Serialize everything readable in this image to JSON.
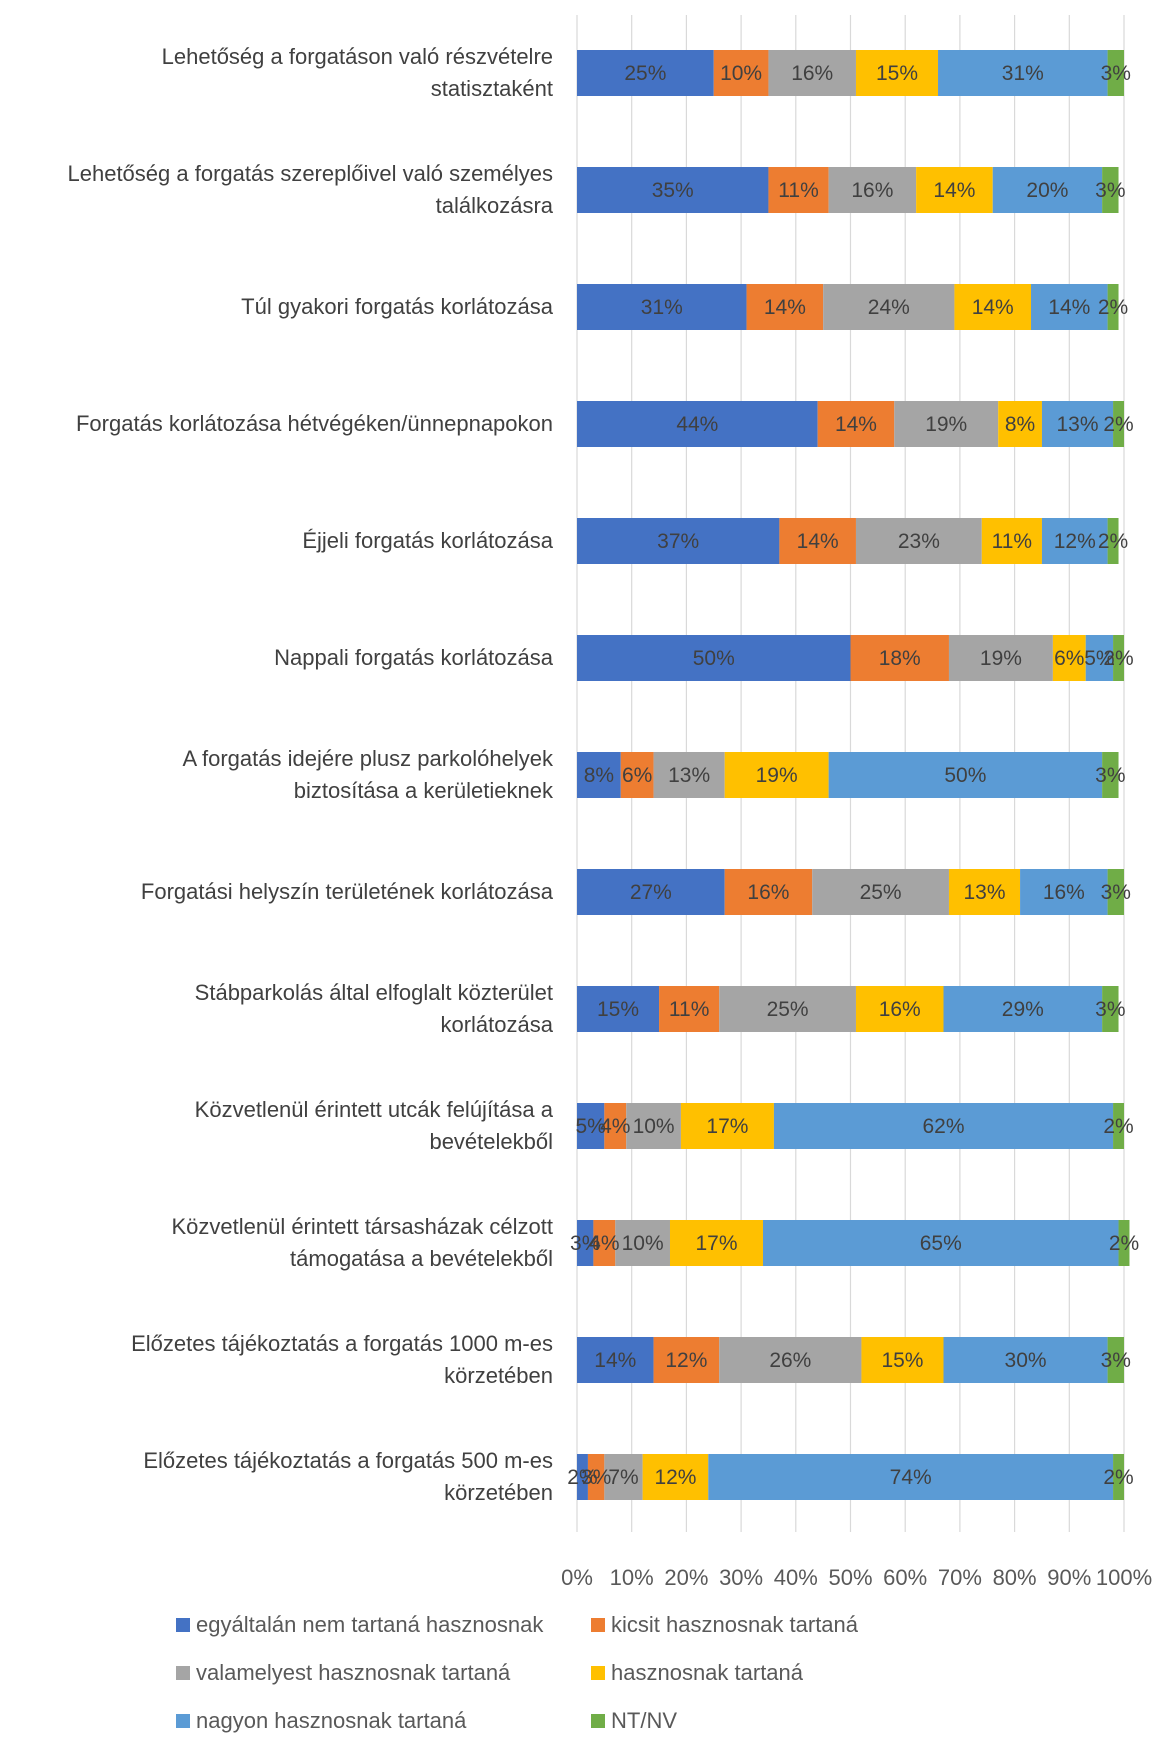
{
  "chart_data": {
    "type": "bar",
    "orientation": "horizontal",
    "stacked": "percent",
    "grid": true,
    "legend_position": "bottom",
    "xlim": [
      0,
      100
    ],
    "x_ticks": [
      "0%",
      "10%",
      "20%",
      "30%",
      "40%",
      "50%",
      "60%",
      "70%",
      "80%",
      "90%",
      "100%"
    ],
    "categories": [
      [
        "Lehetőség a forgatáson való részvételre",
        "statisztaként"
      ],
      [
        "Lehetőség a forgatás szereplőivel való személyes",
        "találkozásra"
      ],
      [
        "Túl gyakori forgatás korlátozása"
      ],
      [
        "Forgatás korlátozása hétvégéken/ünnepnapokon"
      ],
      [
        "Éjjeli forgatás korlátozása"
      ],
      [
        "Nappali forgatás korlátozása"
      ],
      [
        "A forgatás idejére plusz parkolóhelyek",
        "biztosítása a kerületieknek"
      ],
      [
        "Forgatási helyszín területének korlátozása"
      ],
      [
        "Stábparkolás által elfoglalt közterület",
        "korlátozása"
      ],
      [
        "Közvetlenül érintett utcák felújítása a",
        "bevételekből"
      ],
      [
        "Közvetlenül érintett társasházak célzott",
        "támogatása a bevételekből"
      ],
      [
        "Előzetes tájékoztatás a forgatás 1000 m-es",
        "körzetében"
      ],
      [
        "Előzetes tájékoztatás a forgatás 500 m-es",
        "körzetében"
      ]
    ],
    "series": [
      {
        "name": "egyáltalán nem tartaná hasznosnak",
        "color": "#4472C4",
        "values": [
          25,
          35,
          31,
          44,
          37,
          50,
          8,
          27,
          15,
          5,
          3,
          14,
          2
        ],
        "labels": [
          "25%",
          "35%",
          "31%",
          "44%",
          "37%",
          "50%",
          "8%",
          "27%",
          "15%",
          "5%",
          "3%",
          "14%",
          "2%"
        ]
      },
      {
        "name": "kicsit hasznosnak tartaná",
        "color": "#ED7D31",
        "values": [
          10,
          11,
          14,
          14,
          14,
          18,
          6,
          16,
          11,
          4,
          4,
          12,
          3
        ],
        "labels": [
          "10%",
          "11%",
          "14%",
          "14%",
          "14%",
          "18%",
          "6%",
          "16%",
          "11%",
          "4%",
          "4%",
          "12%",
          "3%"
        ]
      },
      {
        "name": "valamelyest hasznosnak tartaná",
        "color": "#A5A5A5",
        "values": [
          16,
          16,
          24,
          19,
          23,
          19,
          13,
          25,
          25,
          10,
          10,
          26,
          7
        ],
        "labels": [
          "16%",
          "16%",
          "24%",
          "19%",
          "23%",
          "19%",
          "13%",
          "25%",
          "25%",
          "10%",
          "10%",
          "26%",
          "7%"
        ]
      },
      {
        "name": "hasznosnak tartaná",
        "color": "#FFC000",
        "values": [
          15,
          14,
          14,
          8,
          11,
          6,
          19,
          13,
          16,
          17,
          17,
          15,
          12
        ],
        "labels": [
          "15%",
          "14%",
          "14%",
          "8%",
          "11%",
          "6%",
          "19%",
          "13%",
          "16%",
          "17%",
          "17%",
          "15%",
          "12%"
        ]
      },
      {
        "name": "nagyon hasznosnak tartaná",
        "color": "#5B9BD5",
        "values": [
          31,
          20,
          14,
          13,
          12,
          5,
          50,
          16,
          29,
          62,
          65,
          30,
          74
        ],
        "labels": [
          "31%",
          "20%",
          "14%",
          "13%",
          "12%",
          "5%",
          "50%",
          "16%",
          "29%",
          "62%",
          "65%",
          "30%",
          "74%"
        ]
      },
      {
        "name": "NT/NV",
        "color": "#70AD47",
        "values": [
          3,
          3,
          2,
          2,
          2,
          2,
          3,
          3,
          3,
          2,
          2,
          3,
          2
        ],
        "labels": [
          "3%",
          "3%",
          "2%",
          "2%",
          "2%",
          "2%",
          "3%",
          "3%",
          "3%",
          "2%",
          "2%",
          "3%",
          "2%"
        ]
      }
    ]
  }
}
